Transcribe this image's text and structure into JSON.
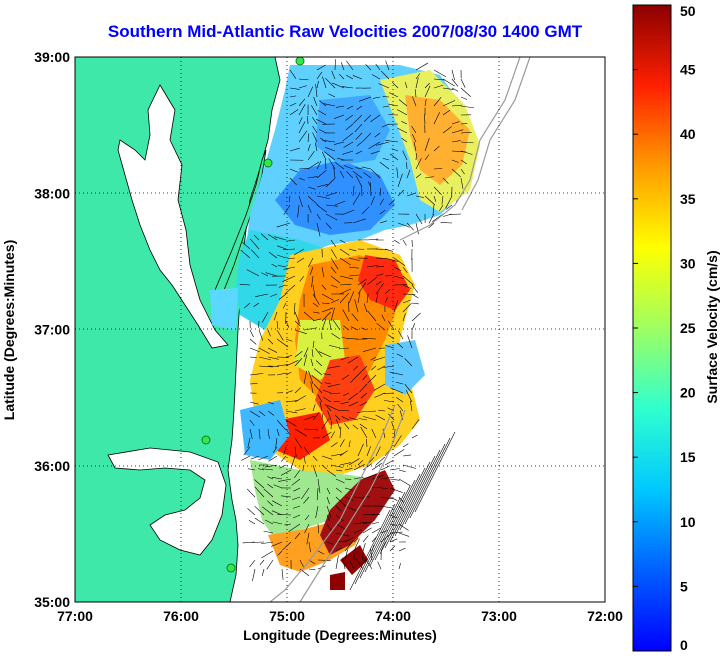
{
  "title": "Southern Mid-Atlantic Raw Velocities 2007/08/30 1400 GMT",
  "axes": {
    "xlabel": "Longitude (Degrees:Minutes)",
    "ylabel": "Latitude (Degrees:Minutes)",
    "x_ticks": [
      "77:00",
      "76:00",
      "75:00",
      "74:00",
      "73:00",
      "72:00"
    ],
    "y_ticks": [
      "39:00",
      "38:00",
      "37:00",
      "36:00",
      "35:00"
    ],
    "x_range": [
      -77,
      -72
    ],
    "y_range": [
      35,
      39
    ]
  },
  "colorbar": {
    "label": "Surface Velocity (cm/s)",
    "ticks": [
      "0",
      "5",
      "10",
      "15",
      "20",
      "25",
      "30",
      "35",
      "40",
      "45",
      "50"
    ],
    "range": [
      0,
      50
    ]
  },
  "colors": {
    "land": "#3ee8a8",
    "title": "#0000ff",
    "grid": "#000000"
  }
}
